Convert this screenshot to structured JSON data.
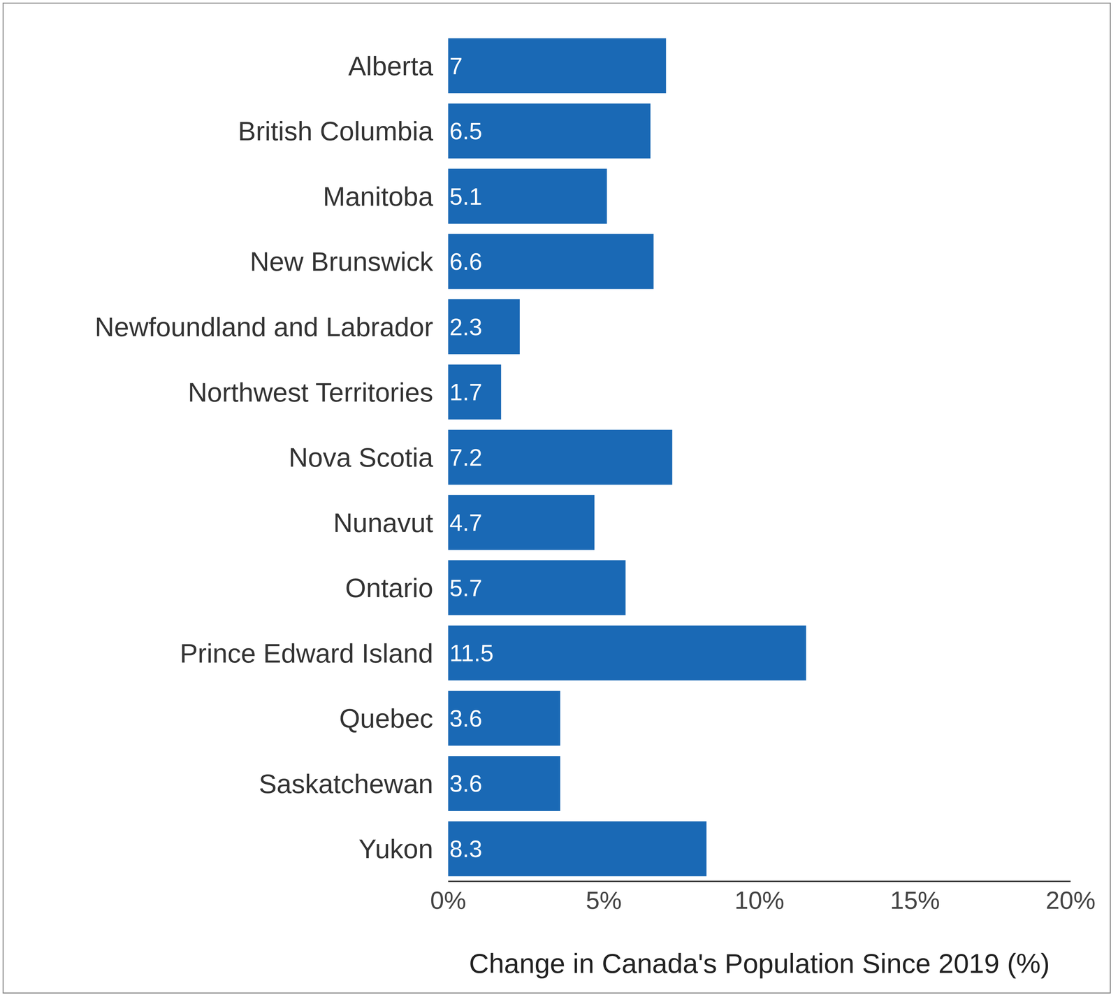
{
  "chart_data": {
    "type": "bar",
    "orientation": "horizontal",
    "categories": [
      "Alberta",
      "British Columbia",
      "Manitoba",
      "New Brunswick",
      "Newfoundland and Labrador",
      "Northwest Territories",
      "Nova Scotia",
      "Nunavut",
      "Ontario",
      "Prince Edward Island",
      "Quebec",
      "Saskatchewan",
      "Yukon"
    ],
    "values": [
      7,
      6.5,
      5.1,
      6.6,
      2.3,
      1.7,
      7.2,
      4.7,
      5.7,
      11.5,
      3.6,
      3.6,
      8.3
    ],
    "color": "#1a69b5",
    "xlabel": "Change in Canada's Population Since 2019 (%)",
    "xlim": [
      0,
      20
    ],
    "xticks": [
      {
        "value": 0,
        "label": "0%"
      },
      {
        "value": 5,
        "label": "5%"
      },
      {
        "value": 10,
        "label": "10%"
      },
      {
        "value": 15,
        "label": "15%"
      },
      {
        "value": 20,
        "label": "20%"
      }
    ],
    "grid": false,
    "data_labels": true
  }
}
